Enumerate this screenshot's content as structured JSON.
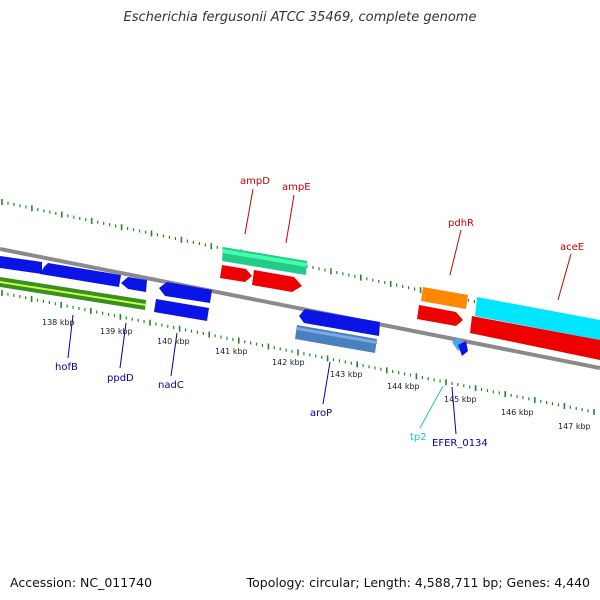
{
  "title": "Escherichia fergusonii ATCC 35469, complete genome",
  "footer": {
    "accession": "Accession: NC_011740",
    "topology": "Topology: circular; Length: 4,588,711 bp; Genes: 4,440"
  },
  "colors": {
    "forward_label": "#cc0000",
    "reverse_label": "#0000aa",
    "trna_label": "#22bbdd",
    "backbone": "#888888",
    "ticks": "#228822"
  },
  "kbp_ticks": [
    {
      "label": "138 kbp",
      "kbp": 138
    },
    {
      "label": "139 kbp",
      "kbp": 139
    },
    {
      "label": "140 kbp",
      "kbp": 140
    },
    {
      "label": "141 kbp",
      "kbp": 141
    },
    {
      "label": "142 kbp",
      "kbp": 142
    },
    {
      "label": "143 kbp",
      "kbp": 143
    },
    {
      "label": "144 kbp",
      "kbp": 144
    },
    {
      "label": "145 kbp",
      "kbp": 145
    },
    {
      "label": "146 kbp",
      "kbp": 146
    },
    {
      "label": "147 kbp",
      "kbp": 147
    }
  ],
  "gene_labels": [
    {
      "name": "ampD",
      "strand": "forward"
    },
    {
      "name": "ampE",
      "strand": "forward"
    },
    {
      "name": "pdhR",
      "strand": "forward"
    },
    {
      "name": "aceE",
      "strand": "forward"
    },
    {
      "name": "hofB",
      "strand": "reverse"
    },
    {
      "name": "ppdD",
      "strand": "reverse"
    },
    {
      "name": "nadC",
      "strand": "reverse"
    },
    {
      "name": "aroP",
      "strand": "reverse"
    },
    {
      "name": "tp2",
      "strand": "trna"
    },
    {
      "name": "EFER_0134",
      "strand": "reverse"
    }
  ]
}
